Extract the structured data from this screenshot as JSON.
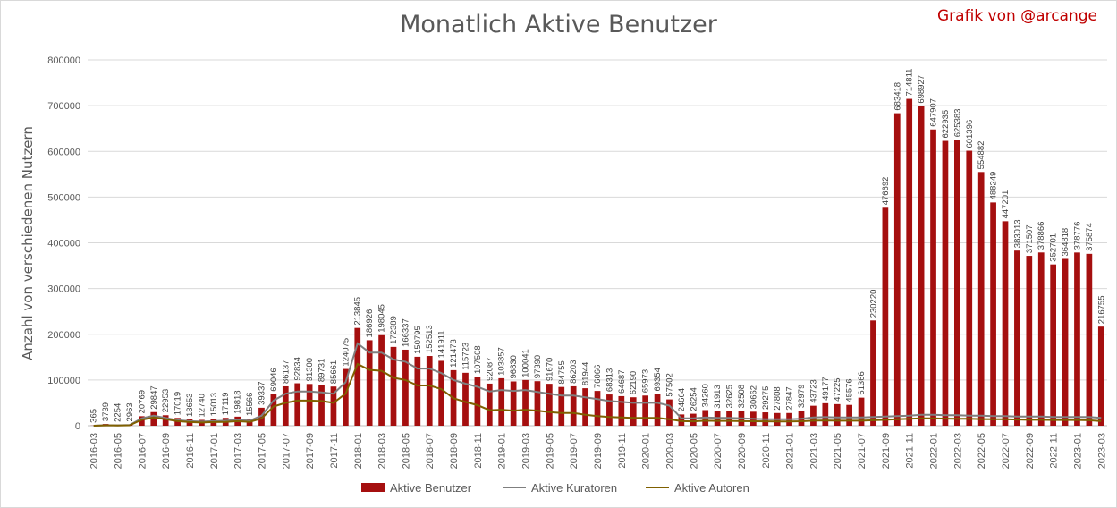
{
  "chart_data": {
    "type": "bar",
    "title": "Monatlich Aktive Benutzer",
    "credit": "Grafik von @arcange",
    "ylabel": "Anzahl von verschiedenen Nutzern",
    "xlabel": "",
    "ylim": [
      0,
      800000
    ],
    "yticks": [
      "0",
      "100000",
      "200000",
      "300000",
      "400000",
      "500000",
      "600000",
      "700000",
      "800000"
    ],
    "grid": true,
    "legend": "bottom",
    "categories": [
      "2016-03",
      "2016-04",
      "2016-05",
      "2016-06",
      "2016-07",
      "2016-08",
      "2016-09",
      "2016-10",
      "2016-11",
      "2016-12",
      "2017-01",
      "2017-02",
      "2017-03",
      "2017-04",
      "2017-05",
      "2017-06",
      "2017-07",
      "2017-08",
      "2017-09",
      "2017-10",
      "2017-11",
      "2017-12",
      "2018-01",
      "2018-02",
      "2018-03",
      "2018-04",
      "2018-05",
      "2018-06",
      "2018-07",
      "2018-08",
      "2018-09",
      "2018-10",
      "2018-11",
      "2018-12",
      "2019-01",
      "2019-02",
      "2019-03",
      "2019-04",
      "2019-05",
      "2019-06",
      "2019-07",
      "2019-08",
      "2019-09",
      "2019-10",
      "2019-11",
      "2019-12",
      "2020-01",
      "2020-02",
      "2020-03",
      "2020-04",
      "2020-05",
      "2020-06",
      "2020-07",
      "2020-08",
      "2020-09",
      "2020-10",
      "2020-11",
      "2020-12",
      "2021-01",
      "2021-02",
      "2021-03",
      "2021-04",
      "2021-05",
      "2021-06",
      "2021-07",
      "2021-08",
      "2021-09",
      "2021-10",
      "2021-11",
      "2021-12",
      "2022-01",
      "2022-02",
      "2022-03",
      "2022-04",
      "2022-05",
      "2022-06",
      "2022-07",
      "2022-08",
      "2022-09",
      "2022-10",
      "2022-11",
      "2022-12",
      "2023-01",
      "2023-02",
      "2023-03"
    ],
    "series": [
      {
        "name": "Aktive Benutzer",
        "color": "#a50f0f",
        "kind": "bar",
        "values": [
          365,
          3739,
          2254,
          2963,
          20769,
          29847,
          22953,
          17019,
          13653,
          12740,
          15013,
          17119,
          19818,
          15566,
          39337,
          69046,
          86137,
          92834,
          91300,
          89731,
          85661,
          124075,
          213845,
          186926,
          198045,
          172389,
          166337,
          150795,
          152513,
          141911,
          121473,
          115723,
          107508,
          92087,
          103857,
          96830,
          100041,
          97390,
          91670,
          84755,
          86203,
          81944,
          76066,
          68313,
          64687,
          62190,
          65973,
          69354,
          57502,
          24664,
          26254,
          34260,
          31913,
          32625,
          32508,
          30662,
          29275,
          27808,
          27847,
          32979,
          43723,
          49177,
          47225,
          45576,
          61366,
          230220,
          476692,
          683418,
          714811,
          698927,
          647907,
          622935,
          625383,
          601396,
          554882,
          488249,
          447201,
          383013,
          371507,
          378866,
          352701,
          364818,
          378776,
          375874,
          216755
        ]
      },
      {
        "name": "Aktive Kuratoren",
        "color": "#7f7f7f",
        "kind": "line",
        "values": [
          0,
          1000,
          800,
          1500,
          16000,
          22000,
          17000,
          12000,
          10000,
          9000,
          10000,
          11000,
          13000,
          11000,
          22000,
          55000,
          70000,
          75000,
          75000,
          73000,
          70000,
          95000,
          180000,
          160000,
          160000,
          145000,
          140000,
          125000,
          125000,
          115000,
          100000,
          92000,
          85000,
          75000,
          78000,
          76000,
          78000,
          74000,
          70000,
          66000,
          66000,
          62000,
          58000,
          54000,
          52000,
          50000,
          50000,
          50000,
          44000,
          16000,
          16000,
          18000,
          17000,
          17000,
          16000,
          15000,
          14000,
          14000,
          14000,
          15000,
          18000,
          19000,
          18000,
          18000,
          18000,
          19000,
          20000,
          21000,
          22000,
          24000,
          24000,
          23000,
          23000,
          22000,
          22000,
          21000,
          21000,
          20000,
          20000,
          20000,
          19000,
          19000,
          19000,
          19000,
          17000
        ]
      },
      {
        "name": "Aktive Autoren",
        "color": "#7f6000",
        "kind": "line",
        "values": [
          0,
          800,
          600,
          1000,
          13000,
          18000,
          14000,
          10000,
          8000,
          7000,
          8000,
          8500,
          10000,
          8500,
          16000,
          42000,
          50000,
          55000,
          55000,
          54000,
          50000,
          70000,
          135000,
          122000,
          120000,
          105000,
          100000,
          88000,
          88000,
          80000,
          60000,
          52000,
          45000,
          34000,
          35000,
          33000,
          35000,
          33000,
          30000,
          28000,
          28000,
          24000,
          21000,
          19000,
          18000,
          17000,
          17000,
          17000,
          14000,
          10000,
          9500,
          11000,
          10500,
          10500,
          10000,
          9800,
          9500,
          9300,
          9200,
          9800,
          11000,
          11500,
          11000,
          11000,
          11000,
          12000,
          13000,
          14000,
          15000,
          16000,
          16000,
          15500,
          15000,
          15000,
          14500,
          14000,
          14000,
          13500,
          13000,
          13000,
          12500,
          12500,
          12500,
          12000,
          10000
        ]
      }
    ]
  }
}
